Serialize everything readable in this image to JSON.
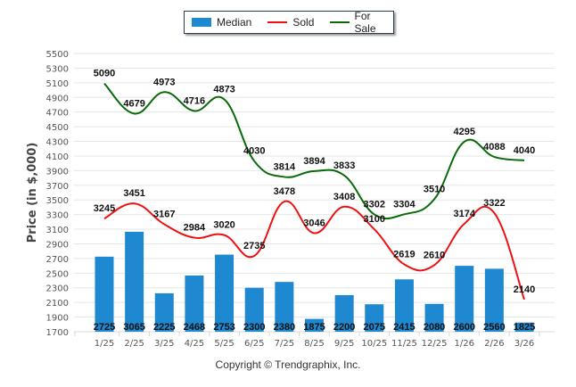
{
  "legend": {
    "items": [
      {
        "label": "Median",
        "kind": "bar",
        "color": "#1e88d0"
      },
      {
        "label": "Sold",
        "kind": "line",
        "color": "#ee1111"
      },
      {
        "label": "For Sale",
        "kind": "line",
        "color": "#0a6a0a"
      }
    ]
  },
  "copyright": "Copyright © Trendgraphix, Inc.",
  "chart_data": {
    "type": "bar+line",
    "title": "",
    "xlabel": "",
    "ylabel": "Price (in $,000)",
    "ylim": [
      1700,
      5500
    ],
    "ytick_step": 200,
    "yticks": [
      "1700",
      "1900",
      "2100",
      "2300",
      "2500",
      "2700",
      "2900",
      "3100",
      "3300",
      "3500",
      "3700",
      "3900",
      "4100",
      "4300",
      "4500",
      "4700",
      "4900",
      "5100",
      "5300",
      "5500"
    ],
    "grid": true,
    "legend_position": "top-center",
    "categories": [
      "1/25",
      "2/25",
      "3/25",
      "4/25",
      "5/25",
      "6/25",
      "7/25",
      "8/25",
      "9/25",
      "10/25",
      "11/25",
      "12/25",
      "1/26",
      "2/26",
      "3/26"
    ],
    "series": [
      {
        "name": "Median",
        "type": "bar",
        "color": "#1e88d0",
        "values": [
          2725,
          3065,
          2225,
          2468,
          2753,
          2300,
          2380,
          1875,
          2200,
          2075,
          2415,
          2080,
          2600,
          2560,
          1825
        ]
      },
      {
        "name": "Sold",
        "type": "line",
        "color": "#ee1111",
        "values": [
          3245,
          3451,
          3167,
          2984,
          3020,
          2735,
          3478,
          3046,
          3408,
          3100,
          2619,
          2610,
          3174,
          3322,
          2140
        ]
      },
      {
        "name": "For Sale",
        "type": "line",
        "color": "#0a6a0a",
        "values": [
          5090,
          4679,
          4973,
          4716,
          4873,
          4030,
          3814,
          3894,
          3833,
          3302,
          3304,
          3510,
          4295,
          4088,
          4040
        ]
      }
    ]
  }
}
